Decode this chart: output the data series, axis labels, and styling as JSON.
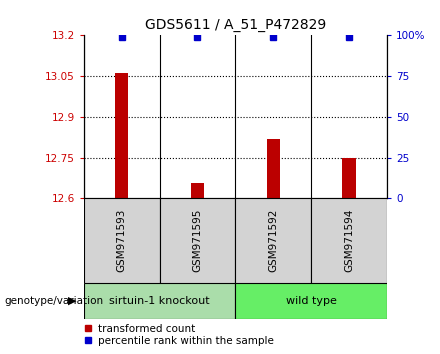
{
  "title": "GDS5611 / A_51_P472829",
  "samples": [
    "GSM971593",
    "GSM971595",
    "GSM971592",
    "GSM971594"
  ],
  "bar_values": [
    13.06,
    12.655,
    12.82,
    12.75
  ],
  "percentile_values": [
    99,
    99,
    99,
    99
  ],
  "ylim_left": [
    12.6,
    13.2
  ],
  "ylim_right": [
    0,
    100
  ],
  "yticks_left": [
    12.6,
    12.75,
    12.9,
    13.05,
    13.2
  ],
  "yticks_right": [
    0,
    25,
    50,
    75,
    100
  ],
  "ytick_labels_left": [
    "12.6",
    "12.75",
    "12.9",
    "13.05",
    "13.2"
  ],
  "ytick_labels_right": [
    "0",
    "25",
    "50",
    "75",
    "100%"
  ],
  "hlines": [
    13.05,
    12.9,
    12.75
  ],
  "bar_color": "#bb0000",
  "dot_color": "#0000cc",
  "bar_bottom": 12.6,
  "groups": [
    {
      "label": "sirtuin-1 knockout",
      "indices": [
        0,
        1
      ],
      "color": "#aaddaa"
    },
    {
      "label": "wild type",
      "indices": [
        2,
        3
      ],
      "color": "#66ee66"
    }
  ],
  "group_label": "genotype/variation",
  "legend_entries": [
    {
      "label": "transformed count",
      "color": "#bb0000"
    },
    {
      "label": "percentile rank within the sample",
      "color": "#0000cc"
    }
  ],
  "tick_color_left": "#cc0000",
  "tick_color_right": "#0000cc",
  "fig_width": 4.4,
  "fig_height": 3.54,
  "dpi": 100
}
